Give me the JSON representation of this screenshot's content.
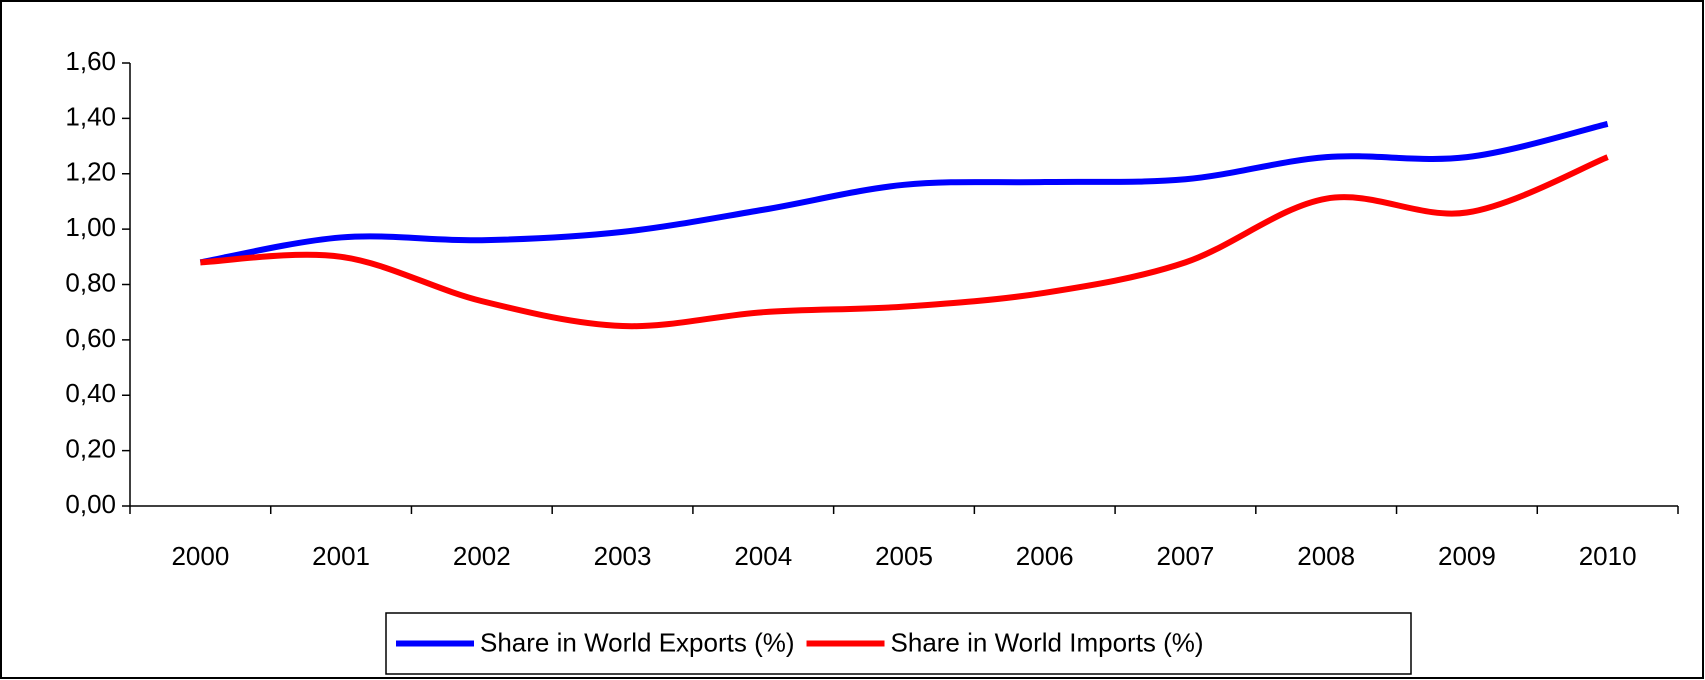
{
  "chart_data": {
    "type": "line",
    "categories": [
      "2000",
      "2001",
      "2002",
      "2003",
      "2004",
      "2005",
      "2006",
      "2007",
      "2008",
      "2009",
      "2010"
    ],
    "series": [
      {
        "name": "Share in World Exports (%)",
        "color": "#0000ff",
        "values": [
          0.88,
          0.97,
          0.96,
          0.99,
          1.07,
          1.16,
          1.17,
          1.18,
          1.26,
          1.26,
          1.38
        ]
      },
      {
        "name": "Share in World Imports (%)",
        "color": "#ff0000",
        "values": [
          0.88,
          0.9,
          0.74,
          0.65,
          0.7,
          0.72,
          0.77,
          0.88,
          1.11,
          1.06,
          1.26
        ]
      }
    ],
    "ylim": [
      0,
      1.6
    ],
    "yticks": [
      {
        "value": 0,
        "label": "0,00"
      },
      {
        "value": 0.2,
        "label": "0,20"
      },
      {
        "value": 0.4,
        "label": "0,40"
      },
      {
        "value": 0.6,
        "label": "0,60"
      },
      {
        "value": 0.8,
        "label": "0,80"
      },
      {
        "value": 1.0,
        "label": "1,00"
      },
      {
        "value": 1.2,
        "label": "1,20"
      },
      {
        "value": 1.4,
        "label": "1,40"
      },
      {
        "value": 1.6,
        "label": "1,60"
      }
    ],
    "legend": "bottom"
  }
}
